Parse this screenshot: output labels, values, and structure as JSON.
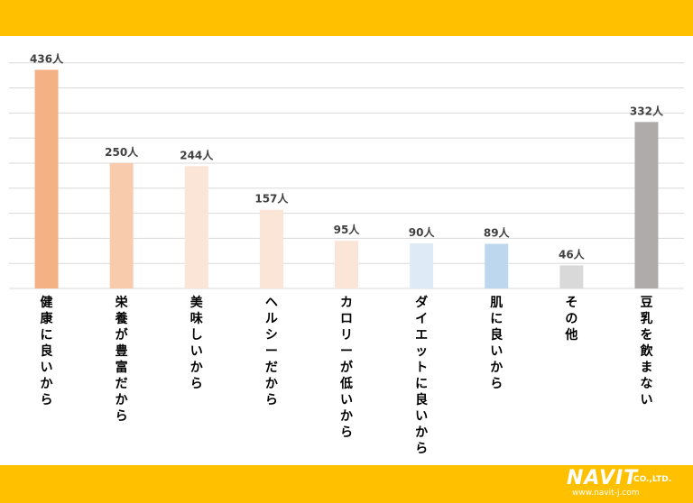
{
  "chart_data": {
    "type": "bar",
    "categories": [
      "健康に良いから",
      "栄養が豊富だから",
      "美味しいから",
      "ヘルシーだから",
      "カロリーが低いから",
      "ダイエットに良いから",
      "肌に良いから",
      "その他",
      "豆乳を飲まない"
    ],
    "values": [
      436,
      250,
      244,
      157,
      95,
      90,
      89,
      46,
      332
    ],
    "value_labels": [
      "436人",
      "250人",
      "244人",
      "157人",
      "95人",
      "90人",
      "89人",
      "46人",
      "332人"
    ],
    "bar_colors": [
      "#F4B183",
      "#F8CBAD",
      "#FBE5D6",
      "#FBE5D6",
      "#FBE5D6",
      "#DEEBF7",
      "#BDD7EE",
      "#D9D9D9",
      "#AFABAB"
    ],
    "ylim": [
      0,
      480
    ],
    "grid": true,
    "gridline_step": 50
  },
  "logo": {
    "brand": "NAVIT",
    "suffix": "CO.,LTD.",
    "url": "www.navit-j.com"
  },
  "colors": {
    "band": "#FFC000",
    "gridline": "#D9D9D9",
    "label_text": "#404040",
    "category_text": "#000000"
  }
}
